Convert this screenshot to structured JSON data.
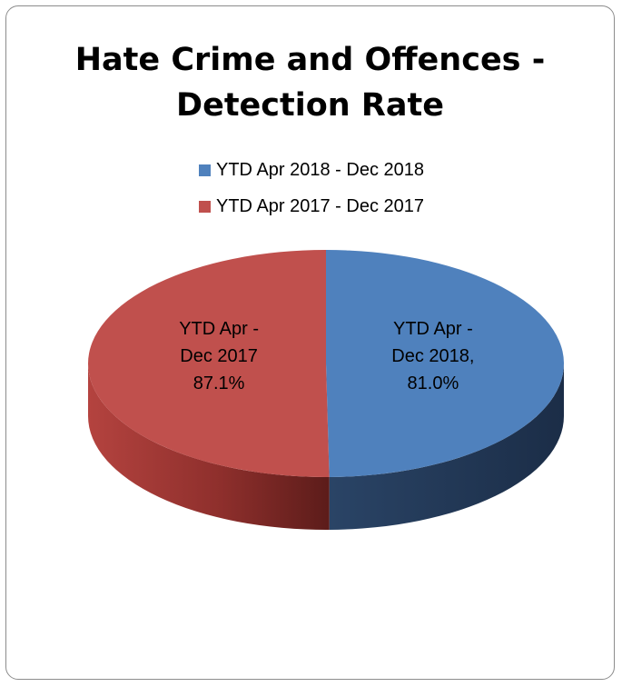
{
  "chart_data": {
    "type": "pie",
    "title_lines": [
      "Hate Crime and Offences -",
      "Detection Rate"
    ],
    "legend": {
      "placement": "top",
      "entries": [
        {
          "label": "YTD Apr 2018 - Dec 2018",
          "color": "#4f81bd"
        },
        {
          "label": "YTD Apr 2017 - Dec 2017",
          "color": "#c0504d"
        }
      ]
    },
    "slices": [
      {
        "name": "YTD Apr - Dec 2018",
        "value": 81.0,
        "color": "#4f81bd",
        "label_lines": [
          "YTD Apr -",
          "Dec 2018,",
          "81.0%"
        ]
      },
      {
        "name": "YTD Apr - Dec 2017",
        "value": 87.1,
        "color": "#c0504d",
        "label_lines": [
          "YTD Apr -",
          "Dec 2017",
          "87.1%"
        ]
      }
    ],
    "style": "3d"
  }
}
